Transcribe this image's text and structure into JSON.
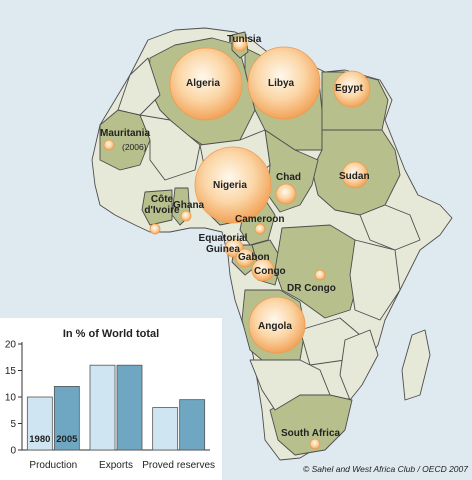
{
  "map": {
    "countries": [
      {
        "name": "Tunisia",
        "sub": ""
      },
      {
        "name": "Algeria",
        "sub": ""
      },
      {
        "name": "Libya",
        "sub": ""
      },
      {
        "name": "Egypt",
        "sub": ""
      },
      {
        "name": "Mauritania",
        "sub": "(2006)"
      },
      {
        "name": "Chad",
        "sub": ""
      },
      {
        "name": "Sudan",
        "sub": ""
      },
      {
        "name": "Nigeria",
        "sub": ""
      },
      {
        "name": "Côte d'Ivoire",
        "sub": ""
      },
      {
        "name": "Ghana",
        "sub": ""
      },
      {
        "name": "Cameroon",
        "sub": ""
      },
      {
        "name": "Equatorial Guinea",
        "sub": ""
      },
      {
        "name": "Gabon",
        "sub": ""
      },
      {
        "name": "Congo",
        "sub": ""
      },
      {
        "name": "DR Congo",
        "sub": ""
      },
      {
        "name": "Angola",
        "sub": ""
      },
      {
        "name": "South Africa",
        "sub": ""
      }
    ],
    "colors": {
      "sea": "#dfe9f0",
      "producer_fill": "#b7c08c",
      "other_fill": "#e6e8d8",
      "border": "#4d4d4d",
      "bubble_center": "#fff6e8",
      "bubble_edge": "#f3a95c"
    }
  },
  "chart_data": {
    "type": "bar",
    "title": "In % of World total",
    "categories": [
      "Production",
      "Exports",
      "Proved reserves"
    ],
    "series": [
      {
        "name": "1980",
        "values": [
          10,
          16,
          8
        ],
        "color": "#cfe6f2"
      },
      {
        "name": "2005",
        "values": [
          12,
          16,
          9.5
        ],
        "color": "#6fa7c2"
      }
    ],
    "ylim": [
      0,
      20
    ],
    "yticks": [
      0,
      5,
      10,
      15,
      20
    ],
    "grid": false,
    "legend": "in-bars"
  },
  "credit": "© Sahel and West Africa Club / OECD 2007"
}
